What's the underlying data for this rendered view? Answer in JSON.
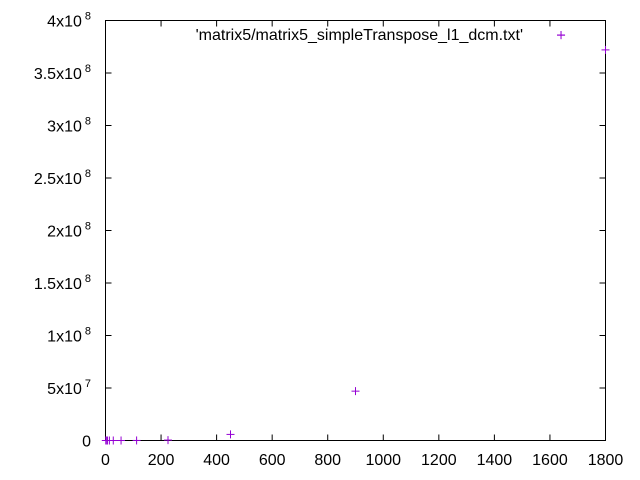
{
  "chart_data": {
    "type": "scatter",
    "title": "",
    "xlabel": "",
    "ylabel": "",
    "xlim": [
      0,
      1800
    ],
    "ylim": [
      0,
      400000000
    ],
    "grid": false,
    "legend": "top-center",
    "point_color": "#9400d3",
    "x_ticks": [
      {
        "value": 0,
        "label": "0"
      },
      {
        "value": 200,
        "label": "200"
      },
      {
        "value": 400,
        "label": "400"
      },
      {
        "value": 600,
        "label": "600"
      },
      {
        "value": 800,
        "label": "800"
      },
      {
        "value": 1000,
        "label": "1000"
      },
      {
        "value": 1200,
        "label": "1200"
      },
      {
        "value": 1400,
        "label": "1400"
      },
      {
        "value": 1600,
        "label": "1600"
      },
      {
        "value": 1800,
        "label": "1800"
      }
    ],
    "y_ticks": [
      {
        "value": 0,
        "mantissa": "0",
        "exponent": ""
      },
      {
        "value": 50000000,
        "mantissa": "5x10",
        "exponent": "7"
      },
      {
        "value": 100000000,
        "mantissa": "1x10",
        "exponent": "8"
      },
      {
        "value": 150000000,
        "mantissa": "1.5x10",
        "exponent": "8"
      },
      {
        "value": 200000000,
        "mantissa": "2x10",
        "exponent": "8"
      },
      {
        "value": 250000000,
        "mantissa": "2.5x10",
        "exponent": "8"
      },
      {
        "value": 300000000,
        "mantissa": "3x10",
        "exponent": "8"
      },
      {
        "value": 350000000,
        "mantissa": "3.5x10",
        "exponent": "8"
      },
      {
        "value": 400000000,
        "mantissa": "4x10",
        "exponent": "8"
      }
    ],
    "series": [
      {
        "name": "'matrix5/matrix5_simpleTranspose_l1_dcm.txt'",
        "points": [
          {
            "x": 1,
            "y": 0
          },
          {
            "x": 3,
            "y": 0
          },
          {
            "x": 7,
            "y": 0
          },
          {
            "x": 14,
            "y": 0
          },
          {
            "x": 28,
            "y": 0
          },
          {
            "x": 56,
            "y": 0
          },
          {
            "x": 112,
            "y": 50000
          },
          {
            "x": 225,
            "y": 400000
          },
          {
            "x": 450,
            "y": 5800000
          },
          {
            "x": 900,
            "y": 47000000
          },
          {
            "x": 1640,
            "y": 386000000
          },
          {
            "x": 1800,
            "y": 372000000
          }
        ]
      }
    ]
  }
}
